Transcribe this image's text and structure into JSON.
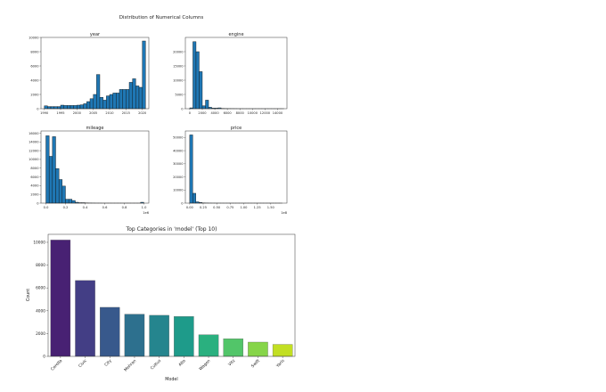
{
  "chart_data": [
    {
      "type": "bar",
      "subtype": "histogram",
      "suptitle": "Distribution of Numerical Columns",
      "title": "year",
      "bin_start": 1990,
      "bin_width": 1,
      "values": [
        400,
        300,
        300,
        300,
        300,
        500,
        450,
        450,
        450,
        450,
        500,
        550,
        700,
        1000,
        1400,
        2000,
        4800,
        1600,
        1200,
        1800,
        2000,
        2200,
        2200,
        2700,
        2700,
        2700,
        3700,
        4200,
        3200,
        3000,
        9500
      ],
      "xlim": [
        1989,
        2022
      ],
      "ylim": [
        0,
        10000
      ],
      "xticks": [
        1990,
        1995,
        2000,
        2005,
        2010,
        2015,
        2020
      ],
      "yticks": [
        0,
        2000,
        4000,
        6000,
        8000,
        10000
      ],
      "offset_label": ""
    },
    {
      "type": "bar",
      "subtype": "histogram",
      "title": "engine",
      "bin_start": 0,
      "bin_width": 500,
      "values": [
        300,
        23500,
        20000,
        13000,
        1000,
        3000,
        500,
        200,
        200,
        300,
        100,
        60,
        40,
        30,
        20,
        10,
        10,
        5,
        5,
        5,
        5,
        5,
        5,
        5,
        5,
        5,
        5,
        5,
        5,
        5
      ],
      "xlim": [
        -700,
        15500
      ],
      "ylim": [
        0,
        25000
      ],
      "xticks": [
        0,
        2000,
        4000,
        6000,
        8000,
        10000,
        12000,
        14000
      ],
      "yticks": [
        0,
        5000,
        10000,
        15000,
        20000
      ],
      "offset_label": ""
    },
    {
      "type": "bar",
      "subtype": "histogram",
      "title": "mileage",
      "bin_start": 0,
      "bin_width": 0.0333,
      "values": [
        15400,
        10700,
        15200,
        7900,
        5400,
        3900,
        900,
        900,
        600,
        200,
        100,
        100,
        50,
        30,
        20,
        10,
        10,
        5,
        5,
        5,
        5,
        5,
        5,
        5,
        5,
        5,
        5,
        5,
        5,
        200
      ],
      "xlim": [
        -0.05,
        1.05
      ],
      "ylim": [
        0,
        16500
      ],
      "xticks": [
        0.0,
        0.2,
        0.4,
        0.6,
        0.8,
        1.0
      ],
      "yticks": [
        0,
        2000,
        4000,
        6000,
        8000,
        10000,
        12000,
        14000,
        16000
      ],
      "offset_label": "1e6"
    },
    {
      "type": "bar",
      "subtype": "histogram",
      "title": "price",
      "bin_start": 0,
      "bin_width": 0.057,
      "values": [
        52000,
        7500,
        1000,
        500,
        200,
        100,
        50,
        30,
        20,
        10,
        5,
        5,
        5,
        5,
        5,
        5,
        5,
        5,
        5,
        5,
        5,
        5,
        5,
        5,
        5,
        5,
        5,
        5,
        5,
        5
      ],
      "xlim": [
        -0.08,
        1.8
      ],
      "ylim": [
        0,
        55000
      ],
      "xticks": [
        0.0,
        0.25,
        0.5,
        0.75,
        1.0,
        1.25,
        1.5
      ],
      "yticks": [
        0,
        10000,
        20000,
        30000,
        40000,
        50000
      ],
      "offset_label": "1e8"
    },
    {
      "type": "bar",
      "title": "Top Categories in 'model' (Top 10)",
      "xlabel": "Model",
      "ylabel": "Count",
      "categories": [
        "Corolla",
        "Civic",
        "City",
        "Mehran",
        "Cultus",
        "Alto",
        "Wagon",
        "Vitz",
        "Swift",
        "Yaris"
      ],
      "values": [
        10200,
        6650,
        4300,
        3700,
        3600,
        3500,
        1900,
        1550,
        1250,
        1050
      ],
      "ylim": [
        0,
        10700
      ],
      "yticks": [
        0,
        2000,
        4000,
        6000,
        8000,
        10000
      ],
      "colors": [
        "#482173",
        "#433e85",
        "#38598c",
        "#2d708e",
        "#25858e",
        "#1e9b8a",
        "#2ab07f",
        "#52c569",
        "#86d549",
        "#c2df23"
      ]
    }
  ]
}
